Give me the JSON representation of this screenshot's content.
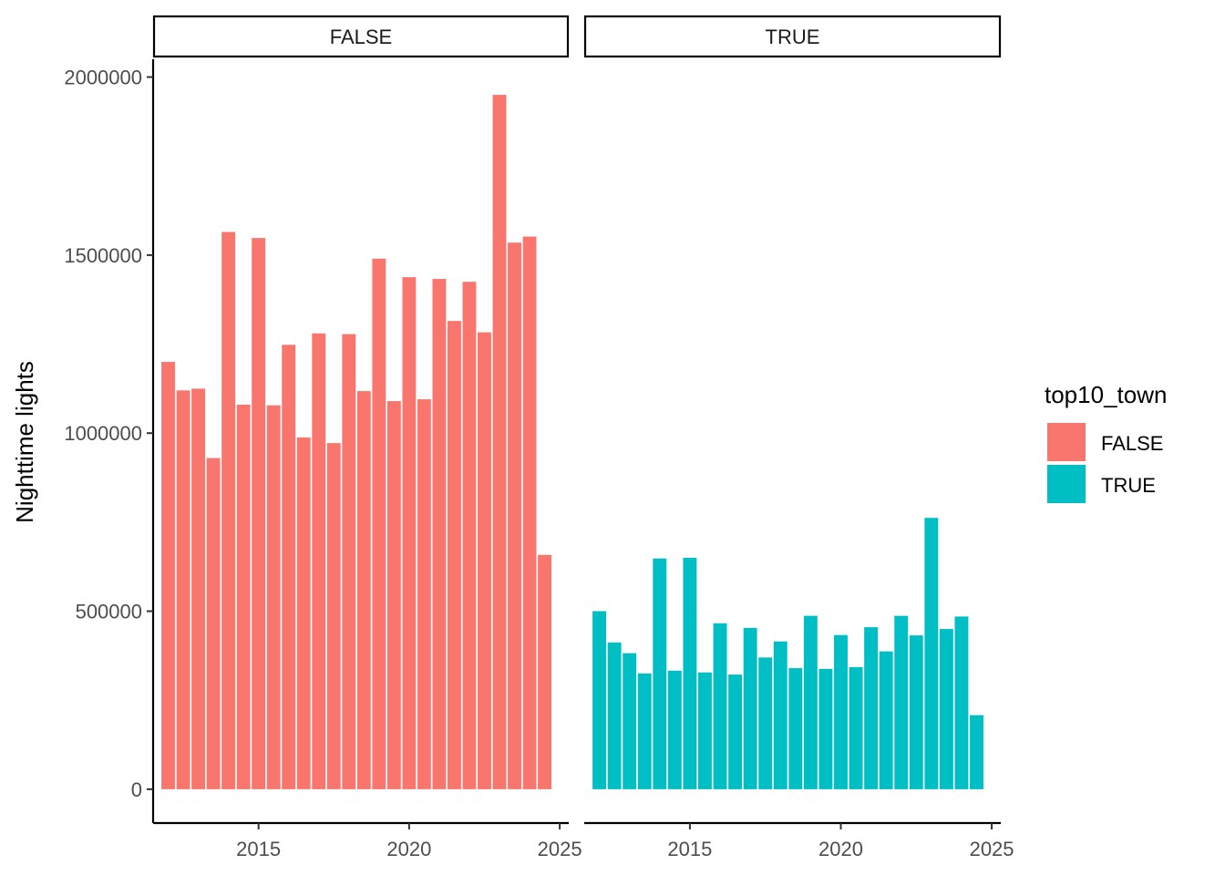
{
  "chart_data": {
    "type": "bar",
    "facet_variable": "top10_town",
    "ylabel": "Nighttime lights",
    "xlabel": "",
    "xlim": [
      2011.5,
      2025.3
    ],
    "ylim": [
      -95000,
      2050000
    ],
    "x_ticks": [
      2015,
      2020,
      2025
    ],
    "x_tick_labels": [
      "2015",
      "2020",
      "2025"
    ],
    "y_ticks": [
      0,
      500000,
      1000000,
      1500000,
      2000000
    ],
    "y_tick_labels": [
      "0",
      "500000",
      "1000000",
      "1500000",
      "2000000"
    ],
    "legend": {
      "title": "top10_town",
      "position": "right",
      "entries": [
        {
          "label": "FALSE",
          "color": "#F8766D"
        },
        {
          "label": "TRUE",
          "color": "#00BFC4"
        }
      ]
    },
    "x": [
      2012.0,
      2012.5,
      2013.0,
      2013.5,
      2014.0,
      2014.5,
      2015.0,
      2015.5,
      2016.0,
      2016.5,
      2017.0,
      2017.5,
      2018.0,
      2018.5,
      2019.0,
      2019.5,
      2020.0,
      2020.5,
      2021.0,
      2021.5,
      2022.0,
      2022.5,
      2023.0,
      2023.5,
      2024.0,
      2024.5
    ],
    "series": [
      {
        "name": "FALSE",
        "strip_label": "FALSE",
        "color": "#F8766D",
        "values": [
          1200000,
          1120000,
          1125000,
          930000,
          1565000,
          1080000,
          1548000,
          1078000,
          1248000,
          988000,
          1280000,
          972000,
          1278000,
          1118000,
          1490000,
          1090000,
          1438000,
          1095000,
          1433000,
          1315000,
          1425000,
          1283000,
          1950000,
          1535000,
          1552000,
          658000
        ]
      },
      {
        "name": "TRUE",
        "strip_label": "TRUE",
        "color": "#00BFC4",
        "values": [
          500000,
          412000,
          382000,
          325000,
          648000,
          333000,
          650000,
          328000,
          466000,
          322000,
          453000,
          370000,
          415000,
          340000,
          487000,
          338000,
          433000,
          343000,
          455000,
          387000,
          487000,
          432000,
          762000,
          450000,
          485000,
          208000
        ]
      }
    ]
  }
}
